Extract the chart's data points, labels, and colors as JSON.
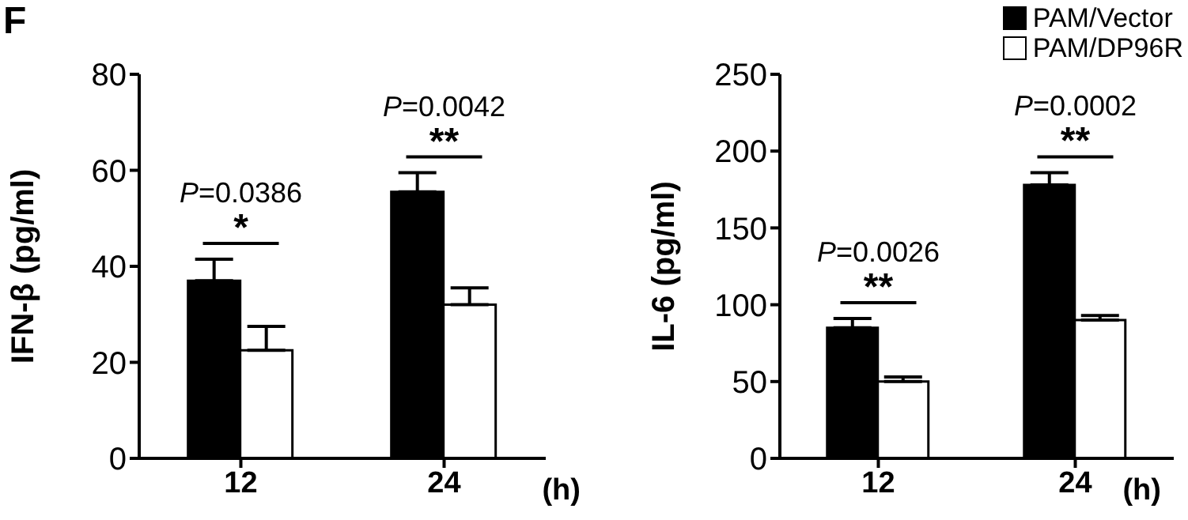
{
  "chart_data": [
    {
      "type": "bar",
      "title": "F",
      "ylabel": "IFN-β (pg/ml)",
      "xlabel": "(h)",
      "categories": [
        "12",
        "24"
      ],
      "ylim": [
        0,
        80
      ],
      "yticks": [
        0,
        20,
        40,
        60,
        80
      ],
      "legend": false,
      "series": [
        {
          "color": "#000000",
          "values": [
            37,
            55.5
          ],
          "errors": [
            [
              37,
              41.5
            ],
            [
              55.5,
              59.5
            ]
          ]
        },
        {
          "color": "#ffffff",
          "values": [
            22.5,
            32
          ],
          "errors": [
            [
              22.5,
              27.5
            ],
            [
              32,
              35.5
            ]
          ]
        }
      ],
      "annotations": [
        "P=0.0386",
        "*",
        "P=0.0042",
        "**"
      ]
    },
    {
      "type": "bar",
      "ylabel": "IL-6 (pg/ml)",
      "xlabel": "(h)",
      "categories": [
        "12",
        "24"
      ],
      "ylim": [
        0,
        250
      ],
      "yticks": [
        0,
        50,
        100,
        150,
        200,
        250
      ],
      "legend": "top right",
      "series": [
        {
          "name": "PAM/Vector",
          "color": "#000000",
          "values": [
            85,
            178
          ],
          "errors": [
            [
              85,
              91
            ],
            [
              178,
              186
            ]
          ]
        },
        {
          "name": "PAM/DP96R",
          "color": "#ffffff",
          "values": [
            50,
            90
          ],
          "errors": [
            [
              50,
              53
            ],
            [
              90,
              93
            ]
          ]
        }
      ],
      "annotations": [
        "P=0.0026",
        "**",
        "P=0.0002",
        "**"
      ]
    }
  ]
}
